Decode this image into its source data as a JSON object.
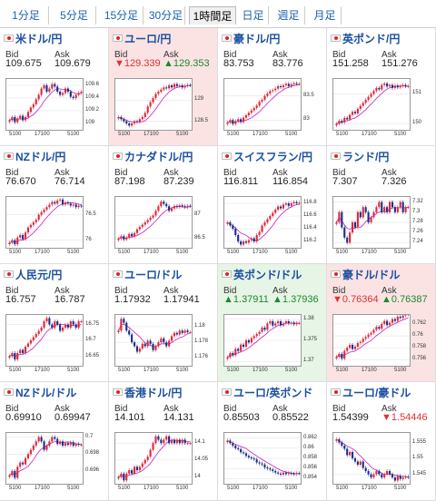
{
  "tabs": [
    {
      "label": "1分足",
      "active": false
    },
    {
      "label": "5分足",
      "active": false
    },
    {
      "label": "15分足",
      "active": false
    },
    {
      "label": "30分足",
      "active": false
    },
    {
      "label": "1時間足",
      "active": true
    },
    {
      "label": "日足",
      "active": false
    },
    {
      "label": "週足",
      "active": false
    },
    {
      "label": "月足",
      "active": false
    }
  ],
  "labels": {
    "bid": "Bid",
    "ask": "Ask"
  },
  "colors": {
    "up_candle": "#e0283c",
    "down_candle": "#1a2f8a",
    "ma": "#c020c0",
    "link": "#1a4fa0",
    "up_bg": "#e6f5e6",
    "down_bg": "#fbe3e3"
  },
  "pairs": [
    {
      "title": "米ドル/円",
      "flag": "flag-icon",
      "bid": "109.675",
      "ask": "109.679",
      "state": "",
      "bid_arrow": "",
      "ask_arrow": "",
      "chart_data": {
        "type": "candlestick",
        "x_ticks": [
          "5100",
          "17100",
          "5100"
        ],
        "y_ticks": [
          "109.6",
          "109.4",
          "109.2",
          "109"
        ],
        "ylim": [
          108.9,
          109.7
        ],
        "closes": [
          109.05,
          109.1,
          109.02,
          109.08,
          109.12,
          109.05,
          109.1,
          109.18,
          109.25,
          109.3,
          109.38,
          109.45,
          109.55,
          109.6,
          109.5,
          109.55,
          109.62,
          109.58,
          109.5,
          109.45,
          109.48,
          109.55,
          109.5,
          109.42,
          109.4,
          109.45,
          109.48,
          109.5
        ]
      }
    },
    {
      "title": "ユーロ/円",
      "flag": "flag-icon",
      "bid": "129.339",
      "ask": "129.353",
      "state": "down",
      "bid_arrow": "▼",
      "ask_arrow": "▲",
      "chart_data": {
        "type": "candlestick",
        "x_ticks": [
          "5100",
          "17100",
          "5100"
        ],
        "y_ticks": [
          "129",
          "128.5"
        ],
        "ylim": [
          128.3,
          129.5
        ],
        "closes": [
          128.6,
          128.55,
          128.5,
          128.45,
          128.4,
          128.45,
          128.5,
          128.48,
          128.55,
          128.6,
          128.7,
          128.85,
          128.95,
          129.05,
          129.15,
          129.2,
          129.25,
          129.3,
          129.28,
          129.35,
          129.3,
          129.38,
          129.33,
          129.35,
          129.3,
          129.34,
          129.36,
          129.35
        ]
      }
    },
    {
      "title": "豪ドル/円",
      "flag": "flag-icon",
      "bid": "83.753",
      "ask": "83.776",
      "state": "",
      "bid_arrow": "",
      "ask_arrow": "",
      "chart_data": {
        "type": "candlestick",
        "x_ticks": [
          "5100",
          "17100",
          "5100"
        ],
        "y_ticks": [
          "83.5",
          "83"
        ],
        "ylim": [
          82.8,
          83.85
        ],
        "closes": [
          82.95,
          83.0,
          82.92,
          82.98,
          83.02,
          82.96,
          83.05,
          83.1,
          83.15,
          83.2,
          83.25,
          83.3,
          83.38,
          83.42,
          83.5,
          83.55,
          83.6,
          83.62,
          83.65,
          83.7,
          83.68,
          83.72,
          83.75,
          83.7,
          83.74,
          83.76,
          83.75,
          83.75
        ]
      }
    },
    {
      "title": "英ポンド/円",
      "flag": "flag-icon",
      "bid": "151.258",
      "ask": "151.276",
      "state": "",
      "bid_arrow": "",
      "ask_arrow": "",
      "chart_data": {
        "type": "candlestick",
        "x_ticks": [
          "5100",
          "17100",
          "5100"
        ],
        "y_ticks": [
          "151",
          "150"
        ],
        "ylim": [
          149.8,
          151.5
        ],
        "closes": [
          150.0,
          150.1,
          150.05,
          150.2,
          150.15,
          150.3,
          150.4,
          150.35,
          150.5,
          150.6,
          150.7,
          150.8,
          150.9,
          151.0,
          151.1,
          151.2,
          151.15,
          151.3,
          151.35,
          151.25,
          151.3,
          151.2,
          151.28,
          151.22,
          151.26,
          151.3,
          151.25,
          151.26
        ]
      }
    },
    {
      "title": "NZドル/円",
      "flag": "flag-icon",
      "bid": "76.670",
      "ask": "76.714",
      "state": "",
      "bid_arrow": "",
      "ask_arrow": "",
      "chart_data": {
        "type": "candlestick",
        "x_ticks": [
          "5100",
          "17100",
          "5100"
        ],
        "y_ticks": [
          "76.5",
          "76"
        ],
        "ylim": [
          75.85,
          76.85
        ],
        "closes": [
          75.95,
          76.0,
          75.92,
          76.05,
          76.1,
          76.02,
          76.15,
          76.25,
          76.3,
          76.35,
          76.4,
          76.5,
          76.55,
          76.6,
          76.65,
          76.7,
          76.75,
          76.72,
          76.78,
          76.8,
          76.7,
          76.74,
          76.72,
          76.68,
          76.7,
          76.65,
          76.68,
          76.67
        ]
      }
    },
    {
      "title": "カナダドル/円",
      "flag": "flag-icon",
      "bid": "87.198",
      "ask": "87.239",
      "state": "",
      "bid_arrow": "",
      "ask_arrow": "",
      "chart_data": {
        "type": "candlestick",
        "x_ticks": [
          "5100",
          "17100",
          "5100"
        ],
        "y_ticks": [
          "87",
          "86.5"
        ],
        "ylim": [
          86.3,
          87.4
        ],
        "closes": [
          86.5,
          86.55,
          86.48,
          86.52,
          86.6,
          86.55,
          86.62,
          86.7,
          86.75,
          86.8,
          86.85,
          86.9,
          86.95,
          87.0,
          87.1,
          87.2,
          87.3,
          87.25,
          87.2,
          87.1,
          87.15,
          87.2,
          87.18,
          87.22,
          87.2,
          87.18,
          87.21,
          87.2
        ]
      }
    },
    {
      "title": "スイスフラン/円",
      "flag": "flag-icon",
      "bid": "116.811",
      "ask": "116.854",
      "state": "",
      "bid_arrow": "",
      "ask_arrow": "",
      "chart_data": {
        "type": "candlestick",
        "x_ticks": [
          "5100",
          "17100",
          "5100"
        ],
        "y_ticks": [
          "116.8",
          "116.6",
          "116.4",
          "116.2"
        ],
        "ylim": [
          116.1,
          116.9
        ],
        "closes": [
          116.5,
          116.45,
          116.4,
          116.3,
          116.2,
          116.15,
          116.2,
          116.18,
          116.22,
          116.25,
          116.2,
          116.3,
          116.35,
          116.45,
          116.5,
          116.55,
          116.6,
          116.65,
          116.7,
          116.75,
          116.72,
          116.78,
          116.8,
          116.76,
          116.8,
          116.82,
          116.8,
          116.81
        ]
      }
    },
    {
      "title": "ランド/円",
      "flag": "flag-icon",
      "bid": "7.307",
      "ask": "7.326",
      "state": "",
      "bid_arrow": "",
      "ask_arrow": "",
      "chart_data": {
        "type": "candlestick",
        "x_ticks": [
          "5100",
          "17100",
          "5100"
        ],
        "y_ticks": [
          "7.32",
          "7.3",
          "7.28",
          "7.26",
          "7.24"
        ],
        "ylim": [
          7.23,
          7.33
        ],
        "closes": [
          7.28,
          7.3,
          7.27,
          7.25,
          7.24,
          7.26,
          7.28,
          7.27,
          7.3,
          7.29,
          7.31,
          7.3,
          7.28,
          7.29,
          7.3,
          7.31,
          7.32,
          7.3,
          7.31,
          7.3,
          7.32,
          7.31,
          7.3,
          7.31,
          7.32,
          7.3,
          7.31,
          7.31
        ]
      }
    },
    {
      "title": "人民元/円",
      "flag": "flag-icon",
      "bid": "16.757",
      "ask": "16.787",
      "state": "",
      "bid_arrow": "",
      "ask_arrow": "",
      "chart_data": {
        "type": "candlestick",
        "x_ticks": [
          "5100",
          "17100",
          "5100"
        ],
        "y_ticks": [
          "16.75",
          "16.7",
          "16.65"
        ],
        "ylim": [
          16.62,
          16.78
        ],
        "closes": [
          16.65,
          16.66,
          16.64,
          16.66,
          16.67,
          16.66,
          16.68,
          16.69,
          16.7,
          16.71,
          16.72,
          16.73,
          16.74,
          16.76,
          16.77,
          16.75,
          16.74,
          16.76,
          16.75,
          16.73,
          16.74,
          16.75,
          16.74,
          16.76,
          16.75,
          16.74,
          16.76,
          16.76
        ]
      }
    },
    {
      "title": "ユーロ/ドル",
      "flag": "flag-icon",
      "bid": "1.17932",
      "ask": "1.17941",
      "state": "",
      "bid_arrow": "",
      "ask_arrow": "",
      "chart_data": {
        "type": "candlestick",
        "x_ticks": [
          "5100",
          "17100",
          "5100"
        ],
        "y_ticks": [
          "1.18",
          "1.178",
          "1.176"
        ],
        "ylim": [
          1.175,
          1.1815
        ],
        "closes": [
          1.1795,
          1.181,
          1.1805,
          1.1795,
          1.179,
          1.178,
          1.1775,
          1.1768,
          1.1772,
          1.1778,
          1.1775,
          1.1782,
          1.1778,
          1.177,
          1.1775,
          1.178,
          1.1785,
          1.178,
          1.1775,
          1.1782,
          1.1788,
          1.1792,
          1.179,
          1.1795,
          1.1792,
          1.1795,
          1.1793,
          1.1793
        ]
      }
    },
    {
      "title": "英ポンド/ドル",
      "flag": "flag-icon",
      "bid": "1.37911",
      "ask": "1.37936",
      "state": "up",
      "bid_arrow": "▲",
      "ask_arrow": "▲",
      "chart_data": {
        "type": "candlestick",
        "x_ticks": [
          "5100",
          "17100",
          "5100"
        ],
        "y_ticks": [
          "1.38",
          "1.375",
          "1.37"
        ],
        "ylim": [
          1.369,
          1.381
        ],
        "closes": [
          1.371,
          1.372,
          1.3715,
          1.373,
          1.3725,
          1.374,
          1.3735,
          1.375,
          1.3745,
          1.3755,
          1.376,
          1.3765,
          1.377,
          1.378,
          1.3775,
          1.379,
          1.3795,
          1.3785,
          1.379,
          1.3795,
          1.3785,
          1.379,
          1.3795,
          1.379,
          1.3792,
          1.3788,
          1.3791,
          1.3791
        ]
      }
    },
    {
      "title": "豪ドル/ドル",
      "flag": "flag-icon",
      "bid": "0.76364",
      "ask": "0.76387",
      "state": "down",
      "bid_arrow": "▼",
      "ask_arrow": "▲",
      "chart_data": {
        "type": "candlestick",
        "x_ticks": [
          "5100",
          "17100",
          "5100"
        ],
        "y_ticks": [
          "0.762",
          "0.76",
          "0.758",
          "0.756"
        ],
        "ylim": [
          0.755,
          0.7635
        ],
        "closes": [
          0.7565,
          0.757,
          0.7562,
          0.7575,
          0.758,
          0.7585,
          0.7578,
          0.7582,
          0.7588,
          0.759,
          0.7595,
          0.7598,
          0.7602,
          0.7605,
          0.761,
          0.7615,
          0.7612,
          0.762,
          0.7625,
          0.7618,
          0.7622,
          0.7628,
          0.7625,
          0.7632,
          0.763,
          0.7634,
          0.7638,
          0.7636
        ]
      }
    },
    {
      "title": "NZドル/ドル",
      "flag": "flag-icon",
      "bid": "0.69910",
      "ask": "0.69947",
      "state": "",
      "bid_arrow": "",
      "ask_arrow": "",
      "chart_data": {
        "type": "candlestick",
        "x_ticks": [
          "5100",
          "17100",
          "5100"
        ],
        "y_ticks": [
          "0.7",
          "0.698",
          "0.696"
        ],
        "ylim": [
          0.6945,
          0.7005
        ],
        "closes": [
          0.6955,
          0.696,
          0.6952,
          0.6965,
          0.697,
          0.6968,
          0.6975,
          0.698,
          0.6985,
          0.699,
          0.6995,
          0.7,
          0.6995,
          0.6985,
          0.699,
          0.6995,
          0.7,
          0.6998,
          0.6992,
          0.6995,
          0.699,
          0.6993,
          0.6991,
          0.6994,
          0.699,
          0.6992,
          0.6991,
          0.6991
        ]
      }
    },
    {
      "title": "香港ドル/円",
      "flag": "flag-icon",
      "bid": "14.101",
      "ask": "14.131",
      "state": "",
      "bid_arrow": "",
      "ask_arrow": "",
      "chart_data": {
        "type": "candlestick",
        "x_ticks": [
          "5100",
          "17100",
          "5100"
        ],
        "y_ticks": [
          "14.1",
          "14.05",
          "14"
        ],
        "ylim": [
          13.98,
          14.13
        ],
        "closes": [
          14.0,
          14.01,
          13.99,
          14.01,
          14.02,
          14.01,
          14.03,
          14.02,
          14.03,
          14.04,
          14.05,
          14.06,
          14.08,
          14.1,
          14.12,
          14.11,
          14.1,
          14.11,
          14.12,
          14.1,
          14.11,
          14.1,
          14.11,
          14.1,
          14.11,
          14.1,
          14.1,
          14.1
        ]
      }
    },
    {
      "title": "ユーロ/英ポンド",
      "flag": "flag-icon",
      "bid": "0.85503",
      "ask": "0.85522",
      "state": "",
      "bid_arrow": "",
      "ask_arrow": "",
      "chart_data": {
        "type": "candlestick",
        "x_ticks": [
          "5100",
          "17100",
          "5100"
        ],
        "y_ticks": [
          "0.862",
          "0.86",
          "0.858",
          "0.856",
          "0.854"
        ],
        "ylim": [
          0.853,
          0.863
        ],
        "closes": [
          0.8615,
          0.861,
          0.8605,
          0.86,
          0.8598,
          0.8592,
          0.859,
          0.8585,
          0.8582,
          0.858,
          0.8578,
          0.8572,
          0.857,
          0.8568,
          0.8562,
          0.856,
          0.8558,
          0.8555,
          0.8552,
          0.855,
          0.8548,
          0.8552,
          0.8549,
          0.8551,
          0.855,
          0.8549,
          0.8551,
          0.855
        ]
      }
    },
    {
      "title": "ユーロ/豪ドル",
      "flag": "flag-icon",
      "bid": "1.54399",
      "ask": "1.54446",
      "state": "",
      "bid_arrow": "",
      "ask_arrow": "▼",
      "chart_data": {
        "type": "candlestick",
        "x_ticks": [
          "5100",
          "17100",
          "5100"
        ],
        "y_ticks": [
          "1.555",
          "1.55",
          "1.545"
        ],
        "ylim": [
          1.542,
          1.558
        ],
        "closes": [
          1.556,
          1.555,
          1.554,
          1.553,
          1.551,
          1.552,
          1.55,
          1.549,
          1.548,
          1.549,
          1.547,
          1.546,
          1.545,
          1.544,
          1.545,
          1.546,
          1.545,
          1.544,
          1.545,
          1.546,
          1.545,
          1.544,
          1.543,
          1.5445,
          1.5435,
          1.544,
          1.5442,
          1.544
        ]
      }
    }
  ]
}
